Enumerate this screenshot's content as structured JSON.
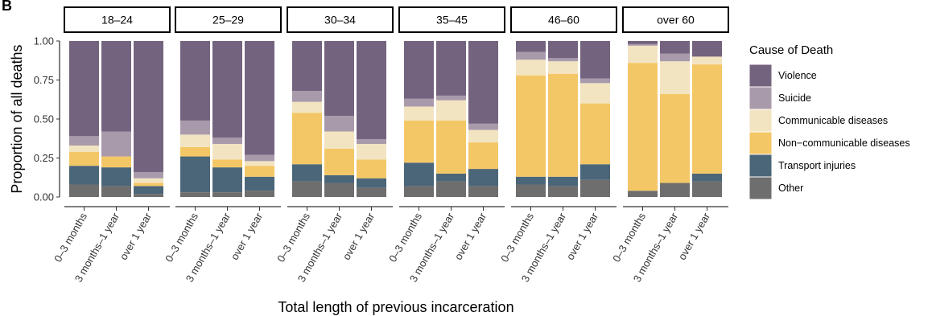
{
  "figure_tag": "B",
  "chart_data": {
    "type": "bar",
    "stacked": true,
    "facet_by": "age group",
    "facets": [
      "18–24",
      "25–29",
      "30–34",
      "35–45",
      "46–60",
      "over 60"
    ],
    "categories": [
      "0–3 months",
      "3 months–1 year",
      "over 1 year"
    ],
    "xlabel": "Total length of previous incarceration",
    "ylabel": "Proportion of all deaths",
    "ylim": [
      0,
      1
    ],
    "yticks": [
      "0.00",
      "0.25",
      "0.50",
      "0.75",
      "1.00"
    ],
    "legend_title": "Cause of Death",
    "legend_position": "right",
    "grid": false,
    "series": [
      {
        "name": "Violence",
        "color": "#74637e"
      },
      {
        "name": "Suicide",
        "color": "#a99aab"
      },
      {
        "name": "Communicable diseases",
        "color": "#f3e4c1"
      },
      {
        "name": "Non−communicable diseases",
        "color": "#f4c766"
      },
      {
        "name": "Transport injuries",
        "color": "#4b6678"
      },
      {
        "name": "Other",
        "color": "#6e6e6e"
      }
    ],
    "stack_order_bottom_to_top": [
      "Other",
      "Transport injuries",
      "Non−communicable diseases",
      "Communicable diseases",
      "Suicide",
      "Violence"
    ],
    "values": {
      "18–24": {
        "0–3 months": {
          "Other": 0.08,
          "Transport injuries": 0.12,
          "Non−communicable diseases": 0.09,
          "Communicable diseases": 0.04,
          "Suicide": 0.06,
          "Violence": 0.61
        },
        "3 months–1 year": {
          "Other": 0.07,
          "Transport injuries": 0.12,
          "Non−communicable diseases": 0.07,
          "Communicable diseases": 0.0,
          "Suicide": 0.16,
          "Violence": 0.58
        },
        "over 1 year": {
          "Other": 0.02,
          "Transport injuries": 0.05,
          "Non−communicable diseases": 0.02,
          "Communicable diseases": 0.03,
          "Suicide": 0.04,
          "Violence": 0.84
        }
      },
      "25–29": {
        "0–3 months": {
          "Other": 0.03,
          "Transport injuries": 0.23,
          "Non−communicable diseases": 0.06,
          "Communicable diseases": 0.08,
          "Suicide": 0.09,
          "Violence": 0.51
        },
        "3 months–1 year": {
          "Other": 0.03,
          "Transport injuries": 0.16,
          "Non−communicable diseases": 0.05,
          "Communicable diseases": 0.1,
          "Suicide": 0.04,
          "Violence": 0.62
        },
        "over 1 year": {
          "Other": 0.04,
          "Transport injuries": 0.09,
          "Non−communicable diseases": 0.07,
          "Communicable diseases": 0.03,
          "Suicide": 0.04,
          "Violence": 0.73
        }
      },
      "30–34": {
        "0–3 months": {
          "Other": 0.1,
          "Transport injuries": 0.11,
          "Non−communicable diseases": 0.33,
          "Communicable diseases": 0.07,
          "Suicide": 0.07,
          "Violence": 0.32
        },
        "3 months–1 year": {
          "Other": 0.09,
          "Transport injuries": 0.05,
          "Non−communicable diseases": 0.17,
          "Communicable diseases": 0.11,
          "Suicide": 0.1,
          "Violence": 0.48
        },
        "over 1 year": {
          "Other": 0.06,
          "Transport injuries": 0.06,
          "Non−communicable diseases": 0.12,
          "Communicable diseases": 0.1,
          "Suicide": 0.03,
          "Violence": 0.63
        }
      },
      "35–45": {
        "0–3 months": {
          "Other": 0.07,
          "Transport injuries": 0.15,
          "Non−communicable diseases": 0.27,
          "Communicable diseases": 0.09,
          "Suicide": 0.05,
          "Violence": 0.37
        },
        "3 months–1 year": {
          "Other": 0.1,
          "Transport injuries": 0.05,
          "Non−communicable diseases": 0.34,
          "Communicable diseases": 0.13,
          "Suicide": 0.03,
          "Violence": 0.35
        },
        "over 1 year": {
          "Other": 0.07,
          "Transport injuries": 0.11,
          "Non−communicable diseases": 0.17,
          "Communicable diseases": 0.08,
          "Suicide": 0.04,
          "Violence": 0.53
        }
      },
      "46–60": {
        "0–3 months": {
          "Other": 0.08,
          "Transport injuries": 0.05,
          "Non−communicable diseases": 0.65,
          "Communicable diseases": 0.1,
          "Suicide": 0.05,
          "Violence": 0.07
        },
        "3 months–1 year": {
          "Other": 0.07,
          "Transport injuries": 0.06,
          "Non−communicable diseases": 0.66,
          "Communicable diseases": 0.08,
          "Suicide": 0.02,
          "Violence": 0.11
        },
        "over 1 year": {
          "Other": 0.11,
          "Transport injuries": 0.1,
          "Non−communicable diseases": 0.39,
          "Communicable diseases": 0.13,
          "Suicide": 0.03,
          "Violence": 0.24
        }
      },
      "over 60": {
        "0–3 months": {
          "Other": 0.04,
          "Transport injuries": 0.0,
          "Non−communicable diseases": 0.82,
          "Communicable diseases": 0.11,
          "Suicide": 0.01,
          "Violence": 0.02
        },
        "3 months–1 year": {
          "Other": 0.09,
          "Transport injuries": 0.0,
          "Non−communicable diseases": 0.57,
          "Communicable diseases": 0.21,
          "Suicide": 0.05,
          "Violence": 0.08
        },
        "over 1 year": {
          "Other": 0.1,
          "Transport injuries": 0.05,
          "Non−communicable diseases": 0.7,
          "Communicable diseases": 0.05,
          "Suicide": 0.0,
          "Violence": 0.1
        }
      }
    }
  }
}
